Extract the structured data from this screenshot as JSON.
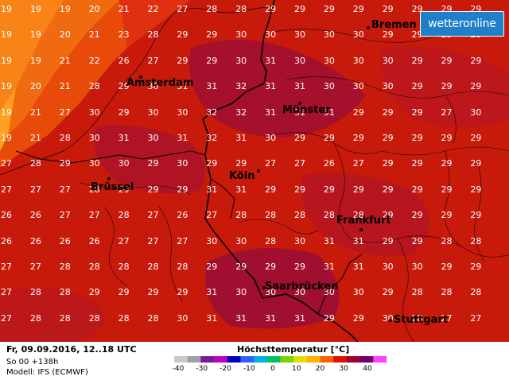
{
  "brand": {
    "logo_text": "wetteronline"
  },
  "footer": {
    "valid_time": "Fr, 09.09.2016, 12..18 UTC",
    "run": "So 00 +138h",
    "model": "Modell: IFS (ECMWF)"
  },
  "legend": {
    "title": "Höchsttemperatur [°C]",
    "ticks": [
      "-40",
      "-30",
      "-20",
      "-10",
      "0",
      "10",
      "20",
      "30",
      "40"
    ],
    "colors": [
      "#c8c8c8",
      "#a0a0a0",
      "#7a1a9a",
      "#c000c0",
      "#0000c0",
      "#3060ff",
      "#00b0e0",
      "#00c060",
      "#80d000",
      "#e0e000",
      "#ffb000",
      "#ff6000",
      "#e01000",
      "#a00030",
      "#700070",
      "#ff40ff"
    ]
  },
  "cities": [
    {
      "name": "Bremen"
    },
    {
      "name": "Amsterdam"
    },
    {
      "name": "Münster"
    },
    {
      "name": "Köln"
    },
    {
      "name": "Brüssel"
    },
    {
      "name": "Frankfurt"
    },
    {
      "name": "Saarbrücken"
    },
    {
      "name": "Stuttgart"
    }
  ],
  "grid": {
    "rows": [
      [
        "19",
        "19",
        "19",
        "20",
        "21",
        "22",
        "27",
        "28",
        "28",
        "29",
        "29",
        "29",
        "29",
        "29",
        "29",
        "29",
        "29"
      ],
      [
        "19",
        "19",
        "20",
        "21",
        "23",
        "28",
        "29",
        "29",
        "30",
        "30",
        "30",
        "30",
        "30",
        "29",
        "29",
        "29",
        "29"
      ],
      [
        "19",
        "19",
        "21",
        "22",
        "26",
        "27",
        "29",
        "29",
        "30",
        "31",
        "30",
        "30",
        "30",
        "30",
        "29",
        "29",
        "29"
      ],
      [
        "19",
        "20",
        "21",
        "28",
        "29",
        "30",
        "31",
        "31",
        "32",
        "31",
        "31",
        "30",
        "30",
        "30",
        "29",
        "29",
        "29"
      ],
      [
        "19",
        "21",
        "27",
        "30",
        "29",
        "30",
        "30",
        "32",
        "32",
        "31",
        "31",
        "31",
        "29",
        "29",
        "29",
        "27",
        "30"
      ],
      [
        "19",
        "21",
        "28",
        "30",
        "31",
        "30",
        "31",
        "32",
        "31",
        "30",
        "29",
        "29",
        "29",
        "29",
        "29",
        "29",
        "29"
      ],
      [
        "27",
        "28",
        "29",
        "30",
        "30",
        "29",
        "30",
        "29",
        "29",
        "27",
        "27",
        "26",
        "27",
        "29",
        "29",
        "29",
        "29"
      ],
      [
        "27",
        "27",
        "27",
        "28",
        "29",
        "29",
        "29",
        "31",
        "31",
        "29",
        "29",
        "29",
        "29",
        "29",
        "29",
        "29",
        "29"
      ],
      [
        "26",
        "26",
        "27",
        "27",
        "28",
        "27",
        "26",
        "27",
        "28",
        "28",
        "28",
        "28",
        "28",
        "29",
        "29",
        "29",
        "29"
      ],
      [
        "26",
        "26",
        "26",
        "26",
        "27",
        "27",
        "27",
        "30",
        "30",
        "28",
        "30",
        "31",
        "31",
        "29",
        "29",
        "28",
        "28"
      ],
      [
        "27",
        "27",
        "28",
        "28",
        "28",
        "28",
        "28",
        "29",
        "29",
        "29",
        "29",
        "31",
        "31",
        "30",
        "30",
        "29",
        "29"
      ],
      [
        "27",
        "28",
        "28",
        "29",
        "29",
        "29",
        "29",
        "31",
        "30",
        "30",
        "30",
        "30",
        "30",
        "29",
        "28",
        "28",
        "28"
      ],
      [
        "27",
        "28",
        "28",
        "28",
        "28",
        "28",
        "30",
        "31",
        "31",
        "31",
        "31",
        "29",
        "29",
        "30",
        "28",
        "27",
        "27"
      ]
    ]
  }
}
